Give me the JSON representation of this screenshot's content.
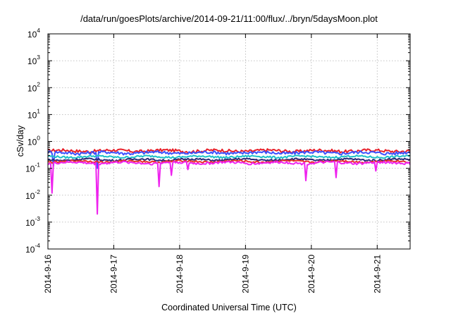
{
  "chart_data": {
    "type": "line",
    "title": "/data/run/goesPlots/archive/2014-09-21/11:00/flux/../bryn/5daysMoon.plot",
    "xlabel": "Coordinated Universal Time (UTC)",
    "ylabel": "cSv/day",
    "yscale": "log",
    "ylim": [
      0.0001,
      10000
    ],
    "xlim": [
      "2014-09-16",
      "2014-09-21 12:00"
    ],
    "x_tick_labels": [
      "2014-9-16",
      "2014-9-17",
      "2014-9-18",
      "2014-9-19",
      "2014-9-20",
      "2014-9-21"
    ],
    "y_tick_labels": [
      {
        "base": "10",
        "exp": "-4"
      },
      {
        "base": "10",
        "exp": "-3"
      },
      {
        "base": "10",
        "exp": "-2"
      },
      {
        "base": "10",
        "exp": "-1"
      },
      {
        "base": "10",
        "exp": "0"
      },
      {
        "base": "10",
        "exp": "1"
      },
      {
        "base": "10",
        "exp": "2"
      },
      {
        "base": "10",
        "exp": "3"
      },
      {
        "base": "10",
        "exp": "4"
      }
    ],
    "grid": true,
    "series": [
      {
        "color": "#e8202a",
        "level": 0.45,
        "noise": 0.13,
        "dips": []
      },
      {
        "color": "#3c50ff",
        "level": 0.38,
        "noise": 0.13,
        "dips": [
          [
            "2014-09-16 02:00",
            0.12
          ],
          [
            "2014-09-16 18:00",
            0.1
          ]
        ]
      },
      {
        "color": "#1ec0c8",
        "level": 0.27,
        "noise": 0.08,
        "dips": []
      },
      {
        "color": "#2a2a7a",
        "level": 0.21,
        "noise": 0.08,
        "dips": []
      },
      {
        "color": "#e83028",
        "level": 0.18,
        "noise": 0.08,
        "dips": []
      },
      {
        "color": "#ee22ee",
        "level": 0.16,
        "noise": 0.1,
        "dips": [
          [
            "2014-09-16 01:30",
            0.012
          ],
          [
            "2014-09-16 18:00",
            0.002
          ],
          [
            "2014-09-17 16:30",
            0.021
          ],
          [
            "2014-09-17 21:00",
            0.055
          ],
          [
            "2014-09-19 22:00",
            0.035
          ],
          [
            "2014-09-20 09:00",
            0.045
          ],
          [
            "2014-09-18 03:00",
            0.09
          ],
          [
            "2014-09-20 23:30",
            0.08
          ]
        ]
      }
    ]
  }
}
